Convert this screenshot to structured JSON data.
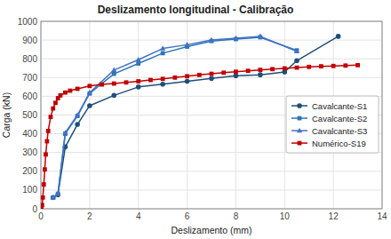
{
  "chart_data": {
    "type": "line",
    "title": "Deslizamento longitudinal - Calibração",
    "x_label": "Deslizamento (mm)",
    "y_label": "Carga (kN)",
    "xlim": [
      0,
      14
    ],
    "ylim": [
      0,
      1000
    ],
    "xticks": [
      0,
      2,
      4,
      6,
      8,
      10,
      12,
      14
    ],
    "yticks": [
      0,
      100,
      200,
      300,
      400,
      500,
      600,
      700,
      800,
      900,
      1000
    ],
    "grid": true,
    "legend": "right",
    "series": [
      {
        "name": "Cavalcante-S1",
        "color": "#1F4E79",
        "marker": "circle",
        "x": [
          0.5,
          0.7,
          1.0,
          1.5,
          2.0,
          3.0,
          4.0,
          5.0,
          6.0,
          7.0,
          8.0,
          9.0,
          10.0,
          10.5,
          12.2
        ],
        "values": [
          60,
          75,
          330,
          450,
          550,
          605,
          650,
          665,
          680,
          695,
          710,
          715,
          730,
          790,
          920
        ]
      },
      {
        "name": "Cavalcante-S2",
        "color": "#2E75B6",
        "marker": "square",
        "x": [
          0.5,
          0.7,
          1.0,
          1.5,
          2.0,
          3.0,
          4.0,
          5.0,
          6.0,
          7.0,
          8.0,
          9.0,
          10.5
        ],
        "values": [
          60,
          80,
          400,
          495,
          615,
          720,
          775,
          830,
          865,
          895,
          905,
          915,
          845
        ]
      },
      {
        "name": "Cavalcante-S3",
        "color": "#4472C4",
        "marker": "triangle",
        "x": [
          0.5,
          0.7,
          1.0,
          1.5,
          2.0,
          3.0,
          4.0,
          5.0,
          6.0,
          7.0,
          8.0,
          9.0,
          10.5
        ],
        "values": [
          60,
          80,
          405,
          500,
          620,
          740,
          795,
          855,
          875,
          900,
          910,
          920,
          840
        ]
      },
      {
        "name": "Numérico-S19",
        "color": "#C00000",
        "marker": "square",
        "x": [
          0.02,
          0.05,
          0.08,
          0.12,
          0.16,
          0.2,
          0.25,
          0.3,
          0.4,
          0.5,
          0.6,
          0.7,
          0.8,
          1.0,
          1.2,
          1.5,
          2.0,
          2.5,
          3.0,
          3.5,
          4.0,
          4.5,
          5.0,
          5.5,
          6.0,
          6.5,
          7.0,
          7.5,
          8.0,
          8.5,
          9.0,
          9.5,
          10.0,
          10.5,
          11.0,
          11.5,
          12.0,
          12.5,
          13.0
        ],
        "values": [
          5,
          20,
          60,
          130,
          210,
          290,
          360,
          415,
          490,
          535,
          565,
          590,
          605,
          620,
          630,
          640,
          655,
          663,
          668,
          674,
          680,
          687,
          693,
          700,
          707,
          714,
          720,
          726,
          731,
          736,
          741,
          745,
          749,
          753,
          757,
          760,
          762,
          764,
          766
        ]
      }
    ]
  }
}
